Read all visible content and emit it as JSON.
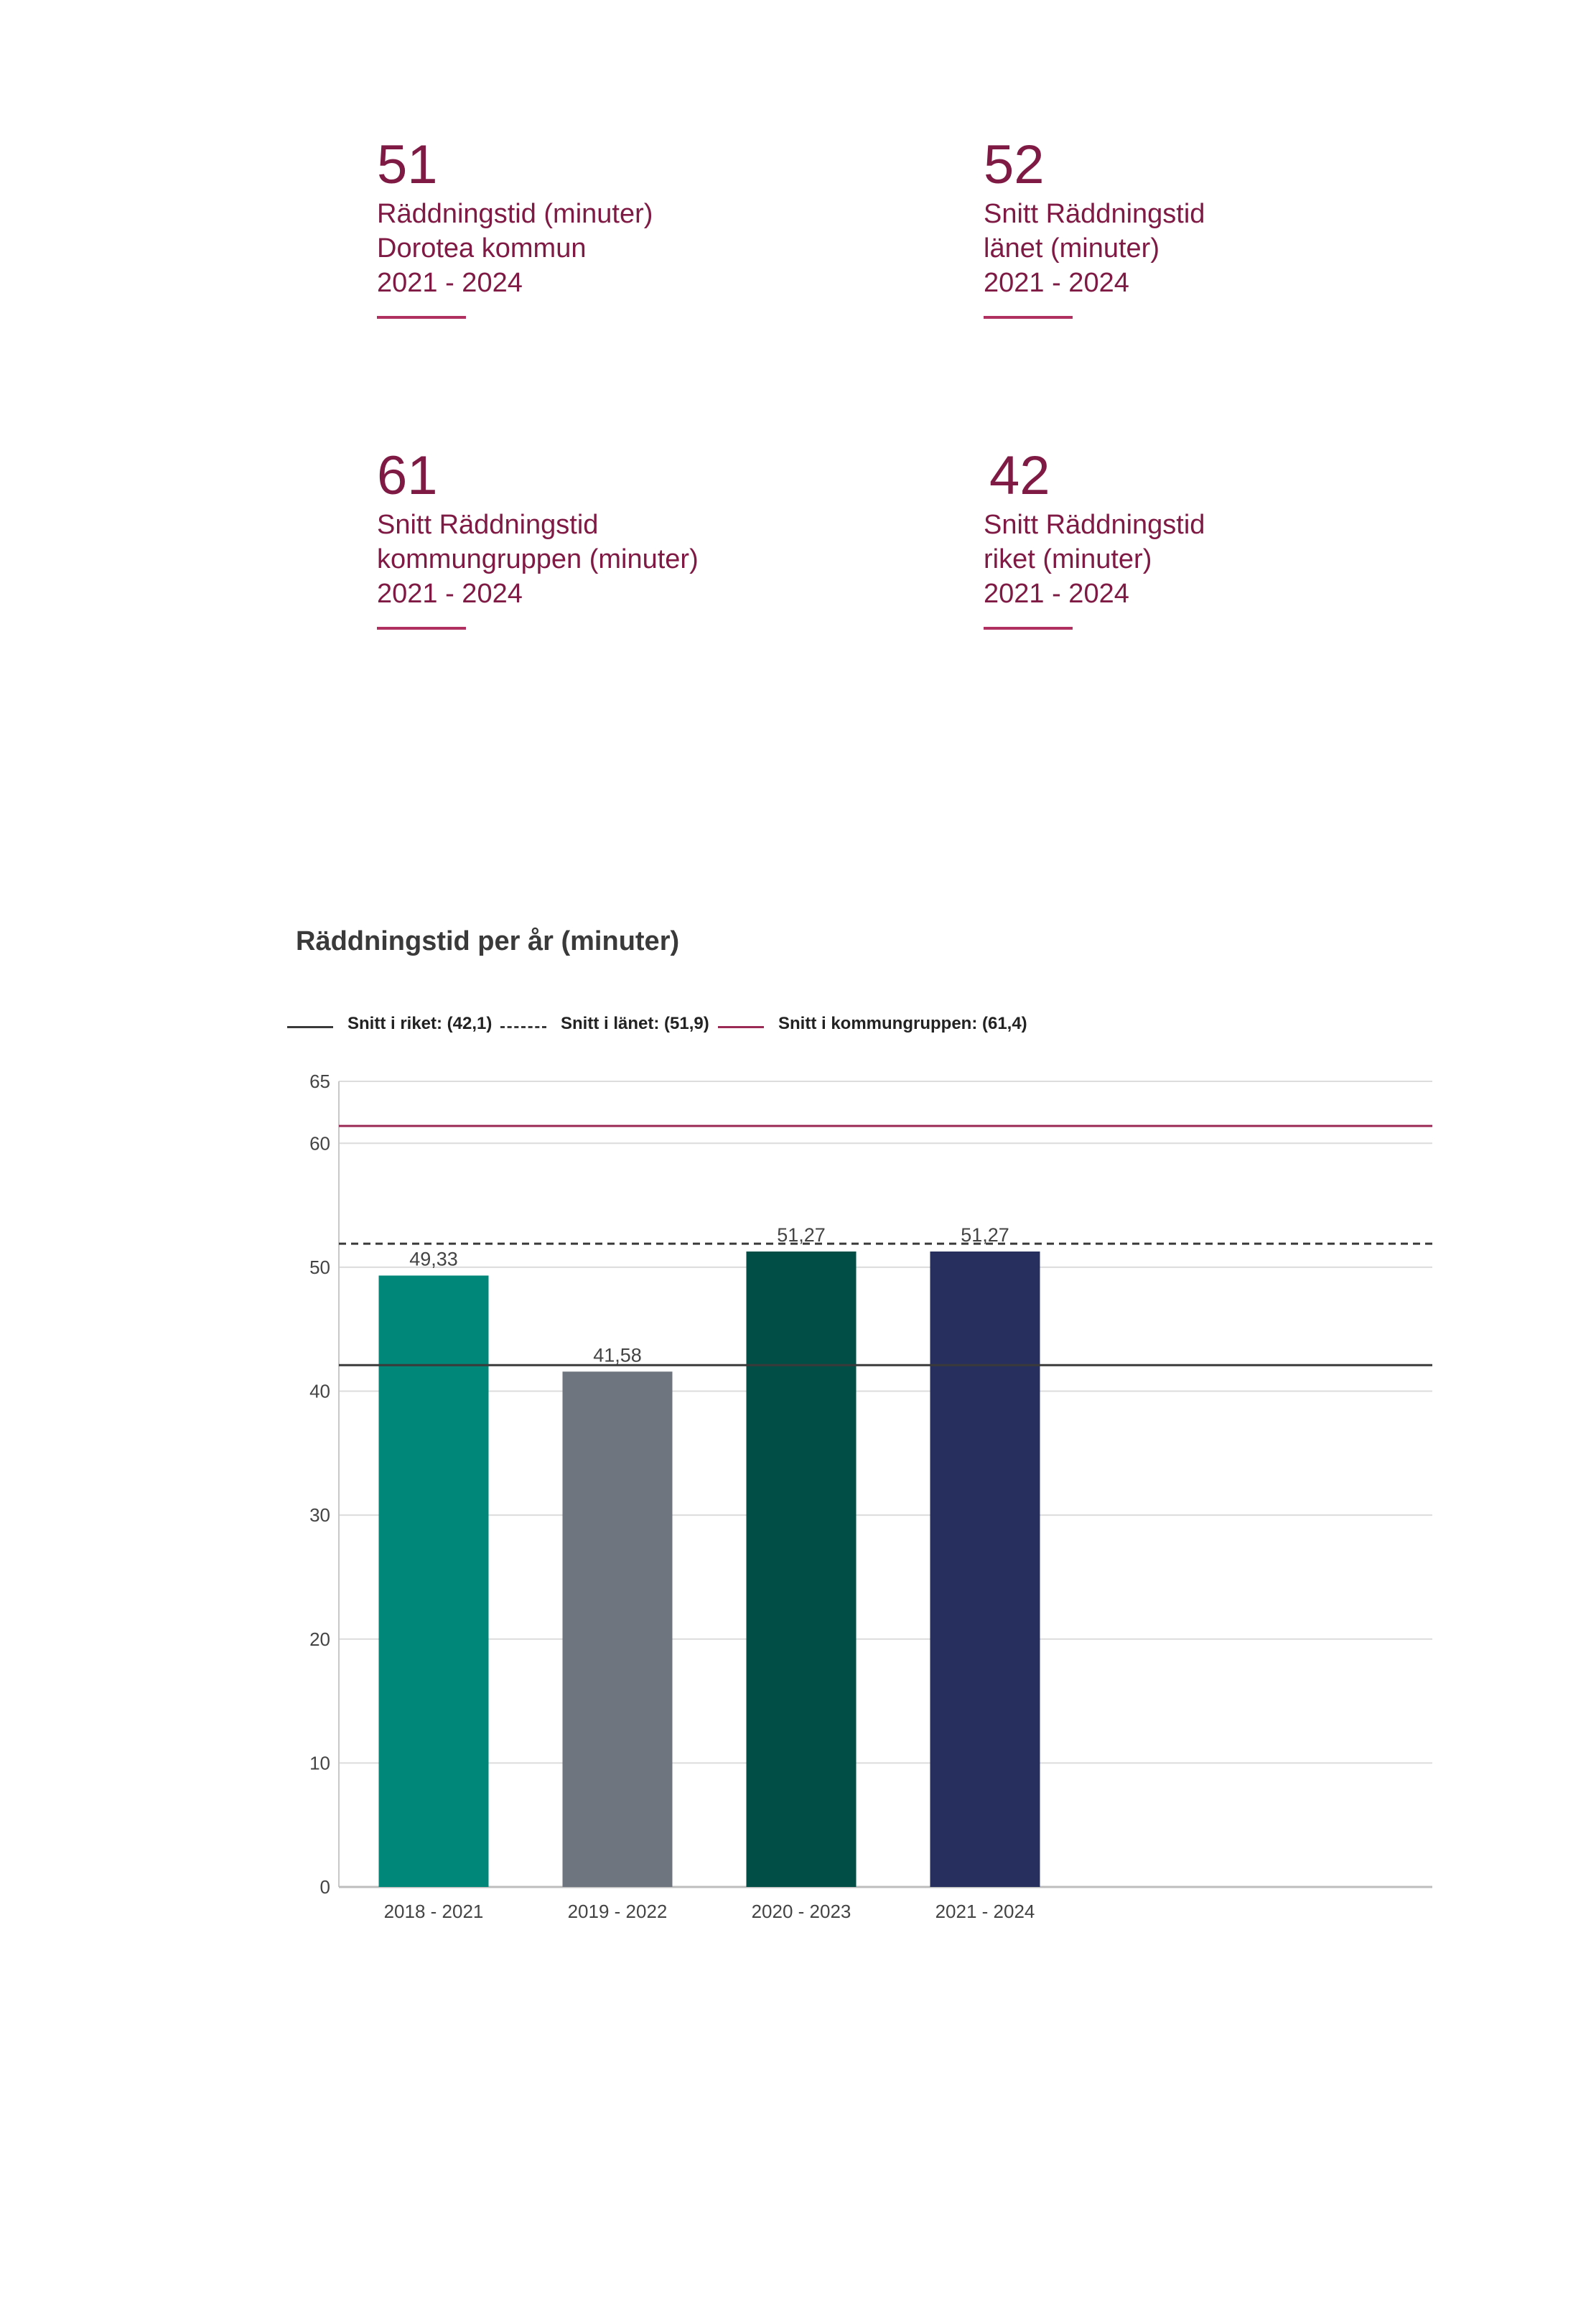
{
  "stats": [
    {
      "value": "51",
      "lines": [
        "Räddningstid (minuter)",
        "Dorotea kommun",
        "2021 - 2024"
      ]
    },
    {
      "value": "52",
      "lines": [
        "Snitt Räddningstid",
        "länet (minuter)",
        "2021 - 2024"
      ]
    },
    {
      "value": "61",
      "lines": [
        "Snitt Räddningstid",
        "kommungruppen (minuter)",
        "2021 - 2024"
      ]
    },
    {
      "value": "42",
      "lines": [
        "Snitt Räddningstid",
        "riket (minuter)",
        "2021 - 2024"
      ]
    }
  ],
  "legend": [
    {
      "label": "Snitt i riket: (42,1)",
      "style": "solid",
      "color": "#3a3a3a"
    },
    {
      "label": "Snitt i länet: (51,9)",
      "style": "dashed",
      "color": "#3a3a3a"
    },
    {
      "label": "Snitt i kommungruppen: (61,4)",
      "style": "solid",
      "color": "#9b2a55"
    }
  ],
  "chart_data": {
    "type": "bar",
    "title": "Räddningstid per år (minuter)",
    "xlabel": "",
    "ylabel": "",
    "categories": [
      "2018 - 2021",
      "2019 - 2022",
      "2020 - 2023",
      "2021 - 2024"
    ],
    "values": [
      49.33,
      41.58,
      51.27,
      51.27
    ],
    "value_labels": [
      "49,33",
      "41,58",
      "51,27",
      "51,27"
    ],
    "bar_colors": [
      "#00877a",
      "#6e757e",
      "#004e45",
      "#262f5e"
    ],
    "reference_lines": [
      {
        "value": 42.1,
        "style": "solid",
        "color": "#3a3a3a"
      },
      {
        "value": 51.9,
        "style": "dashed",
        "color": "#3a3a3a"
      },
      {
        "value": 61.4,
        "style": "solid",
        "color": "#9b2a55"
      }
    ],
    "yticks": [
      0,
      10,
      20,
      30,
      40,
      50,
      60,
      65
    ],
    "ylim": [
      0,
      65
    ],
    "grid": true,
    "legend_position": "top-left"
  }
}
